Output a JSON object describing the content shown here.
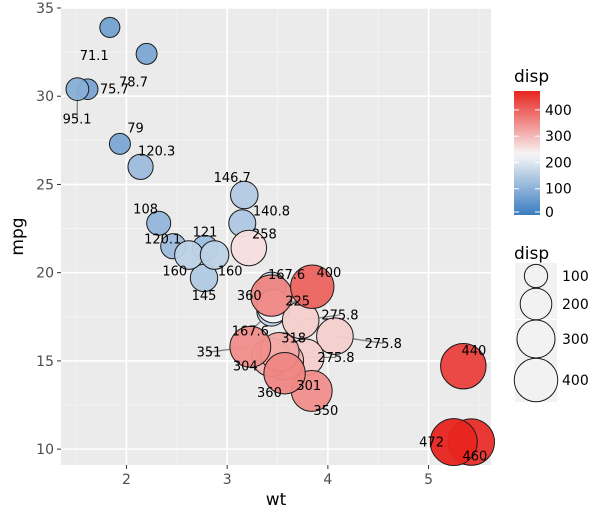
{
  "chart_data": {
    "type": "scatter",
    "title": "",
    "xlabel": "wt",
    "ylabel": "mpg",
    "xlim": [
      1.35,
      5.62
    ],
    "ylim": [
      9.1,
      35.0
    ],
    "x_ticks": [
      2,
      3,
      4,
      5
    ],
    "y_ticks": [
      10,
      15,
      20,
      25,
      30,
      35
    ],
    "grid": true,
    "color_scale": {
      "low": "#3a7cc0",
      "mid": "#f7f7f7",
      "high": "#e8241f",
      "midpoint": 230,
      "limits": [
        0,
        472
      ]
    },
    "legend_color": {
      "title": "disp",
      "ticks": [
        0,
        100,
        200,
        300,
        400
      ],
      "position": "right"
    },
    "legend_size": {
      "title": "disp",
      "values": [
        100,
        200,
        300,
        400
      ],
      "position": "right"
    },
    "points": [
      {
        "x": 1.835,
        "y": 33.9,
        "disp": 71.1,
        "label": "71.1",
        "lx": 1.68,
        "ly": 32.3
      },
      {
        "x": 2.2,
        "y": 32.4,
        "disp": 78.7,
        "label": "78.7",
        "lx": 2.07,
        "ly": 30.8
      },
      {
        "x": 1.513,
        "y": 30.4,
        "disp": 95.1,
        "label": "95.1",
        "lx": 1.51,
        "ly": 28.7,
        "leader": true
      },
      {
        "x": 1.615,
        "y": 30.4,
        "disp": 75.7,
        "label": "75.7",
        "lx": 1.88,
        "ly": 30.4
      },
      {
        "x": 1.935,
        "y": 27.3,
        "disp": 79.0,
        "label": "79",
        "lx": 2.09,
        "ly": 28.2
      },
      {
        "x": 2.14,
        "y": 26.0,
        "disp": 120.3,
        "label": "120.3",
        "lx": 2.3,
        "ly": 26.9
      },
      {
        "x": 3.17,
        "y": 24.4,
        "disp": 146.7,
        "label": "146.7",
        "lx": 3.05,
        "ly": 25.4
      },
      {
        "x": 2.32,
        "y": 22.8,
        "disp": 108.0,
        "label": "108",
        "lx": 2.19,
        "ly": 23.6
      },
      {
        "x": 3.15,
        "y": 22.8,
        "disp": 140.8,
        "label": "140.8",
        "lx": 3.44,
        "ly": 23.5
      },
      {
        "x": 3.215,
        "y": 21.4,
        "disp": 258.0,
        "label": "258",
        "lx": 3.37,
        "ly": 22.2
      },
      {
        "x": 2.465,
        "y": 21.5,
        "disp": 120.1,
        "label": "120.1",
        "lx": 2.36,
        "ly": 21.9
      },
      {
        "x": 2.78,
        "y": 21.4,
        "disp": 121.0,
        "label": "121",
        "lx": 2.78,
        "ly": 22.3
      },
      {
        "x": 2.62,
        "y": 21.0,
        "disp": 160.0,
        "label": "160",
        "lx": 2.48,
        "ly": 20.1
      },
      {
        "x": 2.875,
        "y": 21.0,
        "disp": 160.0,
        "label": "160",
        "lx": 3.03,
        "ly": 20.1
      },
      {
        "x": 2.77,
        "y": 19.7,
        "disp": 145.0,
        "label": "145",
        "lx": 2.77,
        "ly": 18.7
      },
      {
        "x": 3.44,
        "y": 19.2,
        "disp": 167.6,
        "label": "167.6",
        "lx": 3.59,
        "ly": 19.9
      },
      {
        "x": 3.845,
        "y": 19.2,
        "disp": 400.0,
        "label": "400",
        "lx": 4.01,
        "ly": 20.0
      },
      {
        "x": 3.44,
        "y": 18.7,
        "disp": 360.0,
        "label": "360",
        "lx": 3.22,
        "ly": 18.7
      },
      {
        "x": 3.46,
        "y": 18.1,
        "disp": 225.0,
        "label": "225",
        "lx": 3.7,
        "ly": 18.4,
        "leader": true
      },
      {
        "x": 3.44,
        "y": 17.8,
        "disp": 167.6,
        "label": "167.6",
        "lx": 3.23,
        "ly": 16.7,
        "leader": true
      },
      {
        "x": 3.73,
        "y": 17.3,
        "disp": 275.8,
        "label": "275.8",
        "lx": 4.12,
        "ly": 17.6,
        "leader": true
      },
      {
        "x": 4.07,
        "y": 16.4,
        "disp": 275.8,
        "label": "275.8",
        "lx": 4.55,
        "ly": 16.0,
        "leader": true
      },
      {
        "x": 3.52,
        "y": 15.5,
        "disp": 318.0,
        "label": "318",
        "lx": 3.66,
        "ly": 16.3,
        "leader": true
      },
      {
        "x": 3.57,
        "y": 15.0,
        "disp": 301.0,
        "label": "301",
        "lx": 3.81,
        "ly": 13.6,
        "leader": true
      },
      {
        "x": 3.78,
        "y": 15.2,
        "disp": 275.8,
        "label": "275.8",
        "lx": 4.08,
        "ly": 15.2,
        "leader": true
      },
      {
        "x": 3.435,
        "y": 15.2,
        "disp": 304.0,
        "label": "304",
        "lx": 3.18,
        "ly": 14.7
      },
      {
        "x": 3.23,
        "y": 15.8,
        "disp": 351.0,
        "label": "351",
        "lx": 2.82,
        "ly": 15.5,
        "leader": true
      },
      {
        "x": 3.57,
        "y": 14.3,
        "disp": 360.0,
        "label": "360",
        "lx": 3.42,
        "ly": 13.2
      },
      {
        "x": 3.84,
        "y": 13.3,
        "disp": 350.0,
        "label": "350",
        "lx": 3.98,
        "ly": 12.2
      },
      {
        "x": 5.345,
        "y": 14.7,
        "disp": 440.0,
        "label": "440",
        "lx": 5.45,
        "ly": 15.6
      },
      {
        "x": 5.25,
        "y": 10.4,
        "disp": 472.0,
        "label": "472",
        "lx": 5.03,
        "ly": 10.4
      },
      {
        "x": 5.424,
        "y": 10.4,
        "disp": 460.0,
        "label": "460",
        "lx": 5.46,
        "ly": 9.6
      }
    ]
  }
}
